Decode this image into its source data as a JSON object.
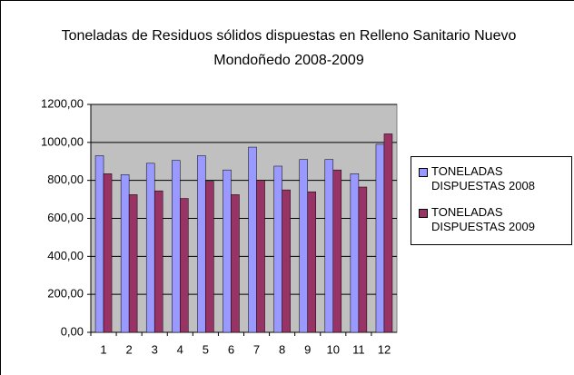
{
  "chart_data": {
    "type": "bar",
    "title": "Toneladas de Residuos sólidos dispuestas en Relleno Sanitario Nuevo Mondoñedo 2008-2009",
    "categories": [
      "1",
      "2",
      "3",
      "4",
      "5",
      "6",
      "7",
      "8",
      "9",
      "10",
      "11",
      "12"
    ],
    "series": [
      {
        "name": "TONELADAS DISPUESTAS 2008",
        "color": "#9999ff",
        "values": [
          930,
          830,
          890,
          905,
          930,
          855,
          975,
          875,
          910,
          910,
          835,
          990
        ]
      },
      {
        "name": "TONELADAS DISPUESTAS 2009",
        "color": "#993366",
        "values": [
          835,
          725,
          745,
          705,
          795,
          725,
          800,
          750,
          740,
          855,
          765,
          1045
        ]
      }
    ],
    "ylim": [
      0,
      1200
    ],
    "yticks": [
      {
        "value": 0,
        "label": "0,00"
      },
      {
        "value": 200,
        "label": "200,00"
      },
      {
        "value": 400,
        "label": "400,00"
      },
      {
        "value": 600,
        "label": "600,00"
      },
      {
        "value": 800,
        "label": "800,00"
      },
      {
        "value": 1000,
        "label": "1000,00"
      },
      {
        "value": 1200,
        "label": "1200,00"
      }
    ],
    "grid": true,
    "legend": "right"
  }
}
